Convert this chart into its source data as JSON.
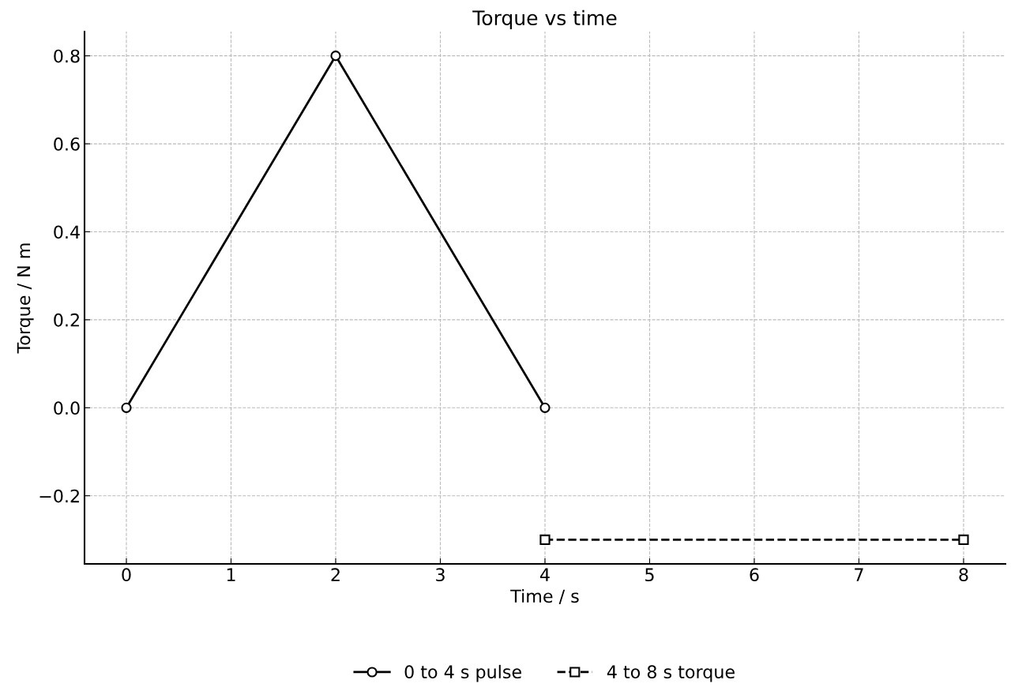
{
  "chart_data": {
    "type": "line",
    "title": "Torque vs time",
    "xlabel": "Time / s",
    "ylabel": "Torque / N m",
    "xlim": [
      -0.4,
      8.4
    ],
    "ylim": [
      -0.355,
      0.855
    ],
    "xticks": [
      0,
      1,
      2,
      3,
      4,
      5,
      6,
      7,
      8
    ],
    "yticks": [
      {
        "value": -0.2,
        "label": "−0.2"
      },
      {
        "value": 0,
        "label": "0.0"
      },
      {
        "value": 0.2,
        "label": "0.2"
      },
      {
        "value": 0.4,
        "label": "0.4"
      },
      {
        "value": 0.6,
        "label": "0.6"
      },
      {
        "value": 0.8,
        "label": "0.8"
      }
    ],
    "grid": true,
    "legend": "bottom",
    "series": [
      {
        "name": "0 to 4 s pulse",
        "color": "#000000",
        "x": [
          0,
          2,
          4
        ],
        "values": [
          0,
          0.8,
          0
        ],
        "marker": "circle",
        "line_style": "solid"
      },
      {
        "name": "4 to 8 s torque",
        "color": "#000000",
        "x": [
          4,
          8
        ],
        "values": [
          -0.3,
          -0.3
        ],
        "marker": "square",
        "line_style": "dashed"
      }
    ]
  }
}
